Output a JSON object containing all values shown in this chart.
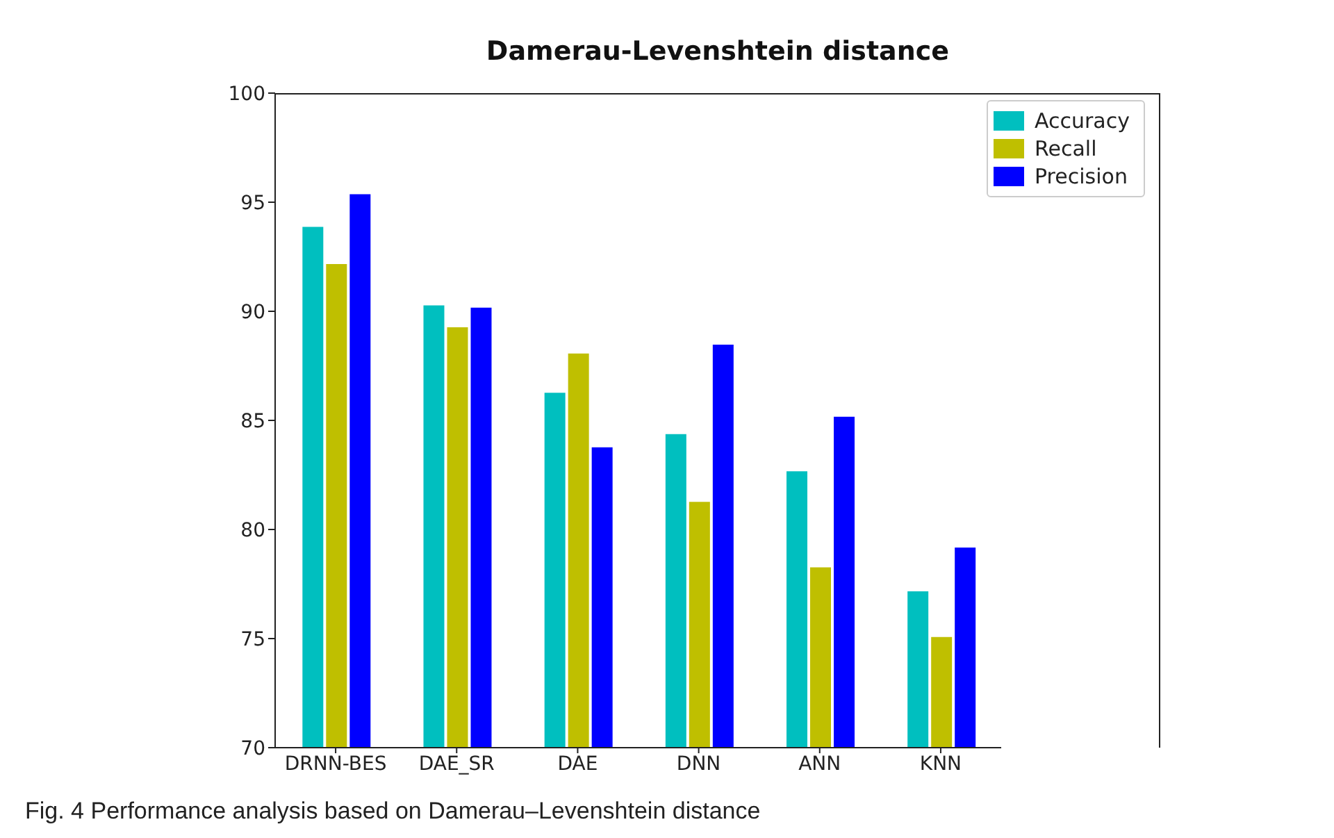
{
  "chart_data": {
    "type": "bar",
    "title": "Damerau-Levenshtein distance",
    "categories": [
      "DRNN-BES",
      "DAE_SR",
      "DAE",
      "DNN",
      "ANN",
      "KNN"
    ],
    "series": [
      {
        "name": "Accuracy",
        "color": "#00bfbf",
        "values": [
          93.9,
          90.3,
          86.3,
          84.4,
          82.7,
          77.2
        ]
      },
      {
        "name": "Recall",
        "color": "#bfbf00",
        "values": [
          92.2,
          89.3,
          88.1,
          81.3,
          78.3,
          75.1
        ]
      },
      {
        "name": "Precision",
        "color": "#0000ff",
        "values": [
          95.4,
          90.2,
          83.8,
          88.5,
          85.2,
          79.2
        ]
      }
    ],
    "ylim": [
      70,
      100
    ],
    "yticks": [
      70,
      75,
      80,
      85,
      90,
      95,
      100
    ],
    "legend": "top right",
    "annotations": [
      "Fig. 4  Performance analysis based on Damerau–Levenshtein distance"
    ]
  }
}
